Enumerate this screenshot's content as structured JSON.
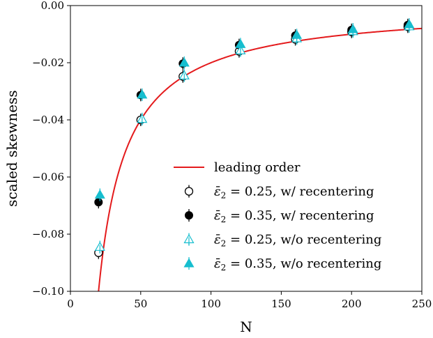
{
  "chart_data": {
    "type": "scatter",
    "title": "",
    "xlabel": "N",
    "ylabel": "scaled skewness",
    "xlim": [
      0,
      250
    ],
    "ylim": [
      -0.1,
      0.0
    ],
    "xticks": [
      0,
      50,
      100,
      150,
      200,
      250
    ],
    "yticks": [
      0.0,
      -0.02,
      -0.04,
      -0.06,
      -0.08,
      -0.1
    ],
    "xtick_labels": [
      "0",
      "50",
      "100",
      "150",
      "200",
      "250"
    ],
    "ytick_labels": [
      "0.00",
      "−0.02",
      "−0.04",
      "−0.06",
      "−0.08",
      "−0.10"
    ],
    "grid": false,
    "legend_position": "lower-right",
    "curve": {
      "name": "leading order",
      "color": "#e41a1c",
      "formula": "y = -2/N",
      "x_start": 20,
      "x_end": 250
    },
    "series": [
      {
        "name": "ε̄₂ = 0.25, w/ recentering",
        "legend_parts": [
          "ε̄",
          "2",
          " = 0.25, w/ recentering"
        ],
        "marker": "circle-open",
        "color": "#000000",
        "x": [
          20,
          50,
          80,
          120,
          160,
          200,
          240
        ],
        "y": [
          -0.0865,
          -0.04,
          -0.0248,
          -0.016,
          -0.0118,
          -0.0092,
          -0.0074
        ]
      },
      {
        "name": "ε̄₂ = 0.35, w/ recentering",
        "legend_parts": [
          "ε̄",
          "2",
          " = 0.35, w/ recentering"
        ],
        "marker": "circle-filled",
        "color": "#000000",
        "x": [
          20,
          50,
          80,
          120,
          160,
          200,
          240
        ],
        "y": [
          -0.0688,
          -0.0313,
          -0.0203,
          -0.0138,
          -0.0105,
          -0.0085,
          -0.0068
        ]
      },
      {
        "name": "ε̄₂ = 0.25, w/o recentering",
        "legend_parts": [
          "ε̄",
          "2",
          " = 0.25, w/o recentering"
        ],
        "marker": "triangle-open",
        "color": "#17becf",
        "x": [
          21,
          51,
          81,
          121,
          161,
          201,
          241
        ],
        "y": [
          -0.0845,
          -0.0397,
          -0.0245,
          -0.0157,
          -0.0115,
          -0.009,
          -0.0073
        ]
      },
      {
        "name": "ε̄₂ = 0.35, w/o recentering",
        "legend_parts": [
          "ε̄",
          "2",
          " = 0.35, w/o recentering"
        ],
        "marker": "triangle-filled",
        "color": "#17becf",
        "x": [
          21,
          51,
          81,
          121,
          161,
          201,
          241
        ],
        "y": [
          -0.0662,
          -0.0312,
          -0.02,
          -0.0135,
          -0.0103,
          -0.0083,
          -0.0066
        ]
      }
    ]
  }
}
